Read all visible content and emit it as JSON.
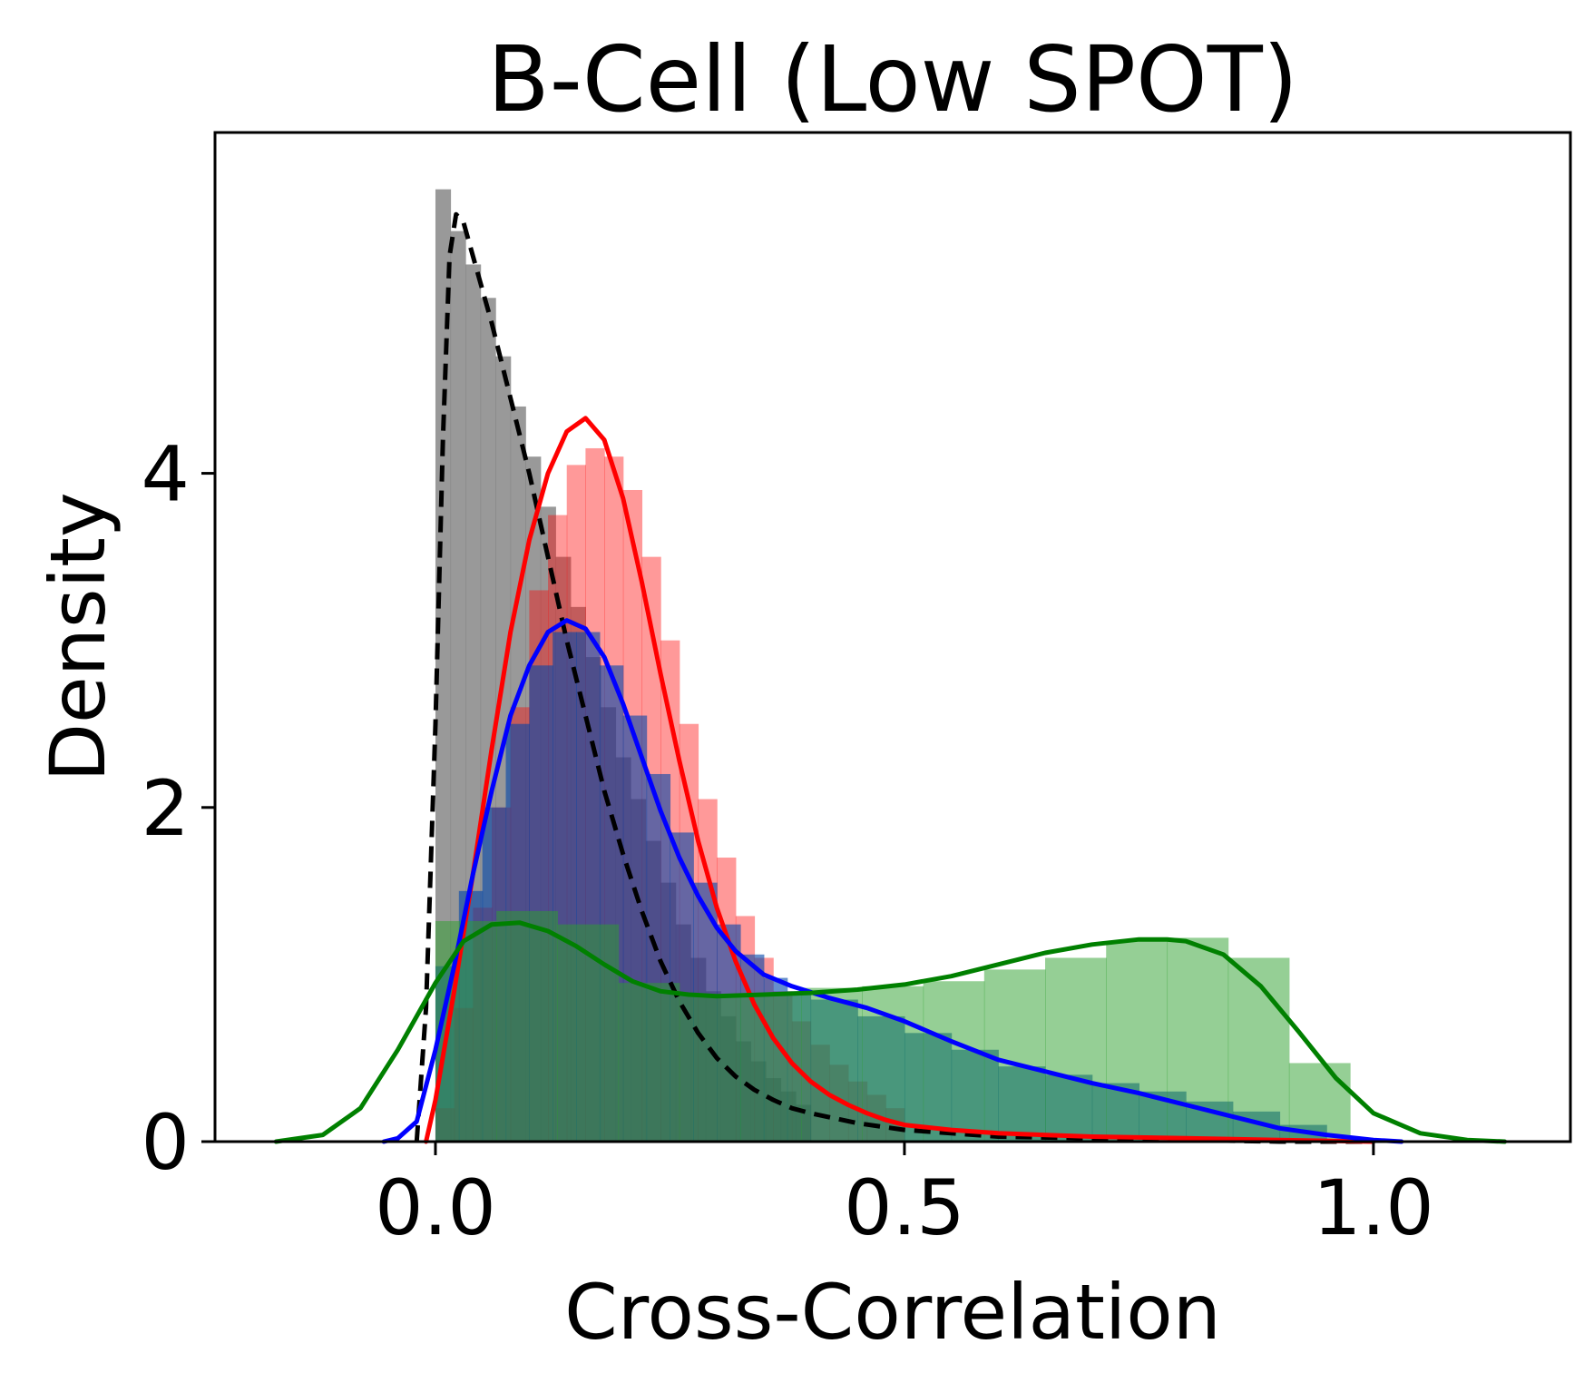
{
  "chart_data": {
    "type": "area",
    "title": "B-Cell (Low SPOT)",
    "xlabel": "Cross-Correlation",
    "ylabel": "Density",
    "xlim": [
      -0.235,
      1.21
    ],
    "ylim": [
      0,
      6.04
    ],
    "xticks": [
      0.0,
      0.5,
      1.0
    ],
    "xtick_labels": [
      "0.0",
      "0.5",
      "1.0"
    ],
    "yticks": [
      0,
      2,
      4
    ],
    "ytick_labels": [
      "0",
      "2",
      "4"
    ],
    "grid": false,
    "legend": false,
    "histograms": [
      {
        "color": "#808080",
        "alpha": 0.8,
        "edges": [
          0.0,
          0.016,
          0.032,
          0.048,
          0.064,
          0.08,
          0.096,
          0.112,
          0.128,
          0.144,
          0.16,
          0.176,
          0.192,
          0.208,
          0.224,
          0.24,
          0.256,
          0.272,
          0.288,
          0.304,
          0.32,
          0.336,
          0.352,
          0.368,
          0.384,
          0.4
        ],
        "values": [
          5.7,
          5.45,
          5.25,
          5.05,
          4.7,
          4.4,
          4.1,
          3.8,
          3.5,
          3.2,
          2.9,
          2.6,
          2.3,
          2.05,
          1.8,
          1.55,
          1.3,
          1.1,
          0.9,
          0.75,
          0.6,
          0.48,
          0.38,
          0.3,
          0.22
        ]
      },
      {
        "color": "#ff0000",
        "alpha": 0.4,
        "edges": [
          0.0,
          0.02,
          0.04,
          0.06,
          0.08,
          0.1,
          0.12,
          0.14,
          0.16,
          0.18,
          0.2,
          0.22,
          0.24,
          0.26,
          0.28,
          0.3,
          0.32,
          0.34,
          0.36,
          0.38,
          0.4,
          0.42,
          0.44,
          0.46,
          0.48,
          0.5
        ],
        "values": [
          0.2,
          0.8,
          1.4,
          2.0,
          2.6,
          3.3,
          3.75,
          4.05,
          4.15,
          4.1,
          3.9,
          3.5,
          3.0,
          2.5,
          2.05,
          1.7,
          1.35,
          1.1,
          0.9,
          0.72,
          0.58,
          0.46,
          0.36,
          0.28,
          0.2
        ]
      },
      {
        "color": "#0044aa",
        "alpha": 0.6,
        "edges": [
          0.0,
          0.025,
          0.05,
          0.075,
          0.1,
          0.125,
          0.15,
          0.175,
          0.2,
          0.225,
          0.25,
          0.275,
          0.3,
          0.325,
          0.35,
          0.375,
          0.4,
          0.45,
          0.5,
          0.55,
          0.6,
          0.65,
          0.7,
          0.75,
          0.8,
          0.85,
          0.9,
          0.95
        ],
        "values": [
          1.05,
          1.5,
          2.0,
          2.5,
          2.85,
          3.05,
          3.05,
          2.85,
          2.55,
          2.2,
          1.85,
          1.55,
          1.3,
          1.12,
          0.98,
          0.9,
          0.85,
          0.75,
          0.65,
          0.55,
          0.45,
          0.4,
          0.35,
          0.3,
          0.24,
          0.18,
          0.1
        ]
      },
      {
        "color": "#2ca02c",
        "alpha": 0.5,
        "edges": [
          0.0,
          0.065,
          0.13,
          0.195,
          0.26,
          0.325,
          0.39,
          0.455,
          0.52,
          0.585,
          0.65,
          0.715,
          0.78,
          0.845,
          0.91,
          0.975
        ],
        "values": [
          1.32,
          1.38,
          1.3,
          0.95,
          0.88,
          0.88,
          0.92,
          0.93,
          0.96,
          1.03,
          1.1,
          1.2,
          1.22,
          1.1,
          0.47
        ]
      }
    ],
    "curves": [
      {
        "color": "#000000",
        "dashed": true,
        "x": [
          -0.02,
          -0.01,
          0.0,
          0.008,
          0.015,
          0.022,
          0.03,
          0.04,
          0.06,
          0.08,
          0.1,
          0.12,
          0.14,
          0.16,
          0.18,
          0.2,
          0.22,
          0.24,
          0.26,
          0.28,
          0.3,
          0.32,
          0.34,
          0.36,
          0.38,
          0.4,
          0.45,
          0.5,
          0.55,
          0.6,
          0.7,
          0.8,
          0.9,
          1.0
        ],
        "y": [
          0.0,
          0.8,
          2.5,
          4.2,
          5.3,
          5.55,
          5.5,
          5.3,
          4.9,
          4.45,
          4.0,
          3.5,
          3.0,
          2.55,
          2.1,
          1.72,
          1.38,
          1.08,
          0.84,
          0.65,
          0.5,
          0.39,
          0.31,
          0.25,
          0.2,
          0.17,
          0.11,
          0.07,
          0.05,
          0.03,
          0.02,
          0.01,
          0.0,
          0.0
        ]
      },
      {
        "color": "#ff0000",
        "dashed": false,
        "x": [
          -0.01,
          0.0,
          0.02,
          0.04,
          0.06,
          0.08,
          0.1,
          0.12,
          0.14,
          0.16,
          0.18,
          0.2,
          0.22,
          0.24,
          0.26,
          0.28,
          0.3,
          0.32,
          0.34,
          0.36,
          0.38,
          0.4,
          0.42,
          0.44,
          0.46,
          0.48,
          0.5,
          0.55,
          0.6,
          0.7,
          0.8,
          0.9,
          1.0
        ],
        "y": [
          0.0,
          0.25,
          0.9,
          1.6,
          2.35,
          3.05,
          3.6,
          4.0,
          4.25,
          4.33,
          4.2,
          3.85,
          3.35,
          2.8,
          2.28,
          1.8,
          1.4,
          1.08,
          0.82,
          0.62,
          0.47,
          0.36,
          0.28,
          0.22,
          0.17,
          0.13,
          0.1,
          0.07,
          0.05,
          0.03,
          0.02,
          0.01,
          0.0
        ]
      },
      {
        "color": "#0000ff",
        "dashed": false,
        "x": [
          -0.055,
          -0.04,
          -0.02,
          0.0,
          0.02,
          0.04,
          0.06,
          0.08,
          0.1,
          0.12,
          0.14,
          0.16,
          0.18,
          0.2,
          0.22,
          0.24,
          0.26,
          0.28,
          0.3,
          0.32,
          0.35,
          0.38,
          0.42,
          0.46,
          0.5,
          0.55,
          0.6,
          0.65,
          0.7,
          0.75,
          0.8,
          0.85,
          0.9,
          0.95,
          1.0,
          1.03
        ],
        "y": [
          0.0,
          0.02,
          0.12,
          0.55,
          1.05,
          1.6,
          2.1,
          2.55,
          2.85,
          3.05,
          3.12,
          3.07,
          2.9,
          2.62,
          2.3,
          1.98,
          1.7,
          1.47,
          1.28,
          1.14,
          1.0,
          0.93,
          0.86,
          0.8,
          0.72,
          0.6,
          0.49,
          0.42,
          0.35,
          0.29,
          0.22,
          0.15,
          0.08,
          0.04,
          0.01,
          0.0
        ]
      },
      {
        "color": "#008000",
        "dashed": false,
        "x": [
          -0.17,
          -0.12,
          -0.08,
          -0.04,
          0.0,
          0.03,
          0.06,
          0.09,
          0.12,
          0.15,
          0.18,
          0.21,
          0.24,
          0.27,
          0.3,
          0.35,
          0.4,
          0.45,
          0.5,
          0.55,
          0.6,
          0.65,
          0.7,
          0.75,
          0.78,
          0.8,
          0.84,
          0.88,
          0.92,
          0.96,
          1.0,
          1.05,
          1.1,
          1.14
        ],
        "y": [
          0.0,
          0.04,
          0.2,
          0.55,
          0.95,
          1.2,
          1.3,
          1.31,
          1.26,
          1.17,
          1.06,
          0.96,
          0.9,
          0.88,
          0.87,
          0.88,
          0.89,
          0.91,
          0.94,
          0.99,
          1.06,
          1.13,
          1.18,
          1.21,
          1.21,
          1.2,
          1.12,
          0.93,
          0.66,
          0.38,
          0.17,
          0.05,
          0.01,
          0.0
        ]
      }
    ]
  }
}
